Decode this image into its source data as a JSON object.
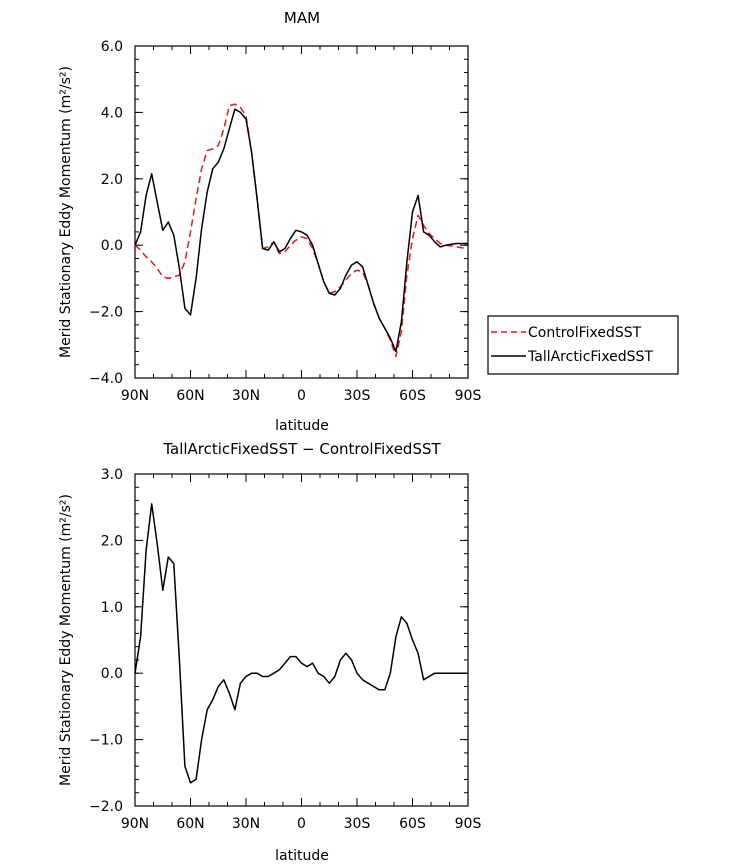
{
  "chart_data": [
    {
      "type": "line",
      "title": "MAM",
      "xlabel": "latitude",
      "ylabel": "Merid Stationary Eddy Momentum (m²/s²)",
      "xlim": [
        90,
        -90
      ],
      "ylim": [
        -4.0,
        6.0
      ],
      "xticks": [
        90,
        60,
        30,
        0,
        -30,
        -60,
        -90
      ],
      "xtick_labels": [
        "90N",
        "60N",
        "30N",
        "0",
        "30S",
        "60S",
        "90S"
      ],
      "yticks": [
        -4.0,
        -2.0,
        0.0,
        2.0,
        4.0,
        6.0
      ],
      "ytick_labels": [
        "−4.0",
        "−2.0",
        "0.0",
        "2.0",
        "4.0",
        "6.0"
      ],
      "grid": false,
      "legend": "right",
      "series": [
        {
          "name": "ControlFixedSST",
          "color": "#e41a1c",
          "style": "dashed",
          "x": [
            90,
            87,
            84,
            81,
            78,
            75,
            72,
            69,
            66,
            63,
            60,
            57,
            54,
            51,
            48,
            45,
            42,
            39,
            36,
            33,
            30,
            27,
            24,
            21,
            18,
            15,
            12,
            9,
            6,
            3,
            0,
            -3,
            -6,
            -9,
            -12,
            -15,
            -18,
            -21,
            -24,
            -27,
            -30,
            -33,
            -36,
            -39,
            -42,
            -45,
            -48,
            -51,
            -54,
            -57,
            -60,
            -63,
            -66,
            -69,
            -72,
            -75,
            -78,
            -81,
            -84,
            -87,
            -90
          ],
          "y": [
            0.0,
            -0.15,
            -0.35,
            -0.5,
            -0.7,
            -0.95,
            -1.0,
            -0.95,
            -0.9,
            -0.5,
            0.4,
            1.4,
            2.3,
            2.85,
            2.9,
            3.0,
            3.5,
            4.2,
            4.25,
            4.15,
            3.9,
            2.8,
            1.4,
            -0.1,
            -0.05,
            0.1,
            -0.25,
            -0.2,
            0.0,
            0.15,
            0.25,
            0.2,
            -0.1,
            -0.55,
            -1.1,
            -1.45,
            -1.4,
            -1.25,
            -1.05,
            -0.85,
            -0.75,
            -0.8,
            -1.2,
            -1.75,
            -2.2,
            -2.5,
            -2.85,
            -3.35,
            -2.6,
            -0.9,
            0.2,
            0.9,
            0.6,
            0.35,
            0.2,
            0.05,
            0.0,
            -0.02,
            -0.05,
            -0.08,
            -0.1
          ]
        },
        {
          "name": "TallArcticFixedSST",
          "color": "#000000",
          "style": "solid",
          "x": [
            90,
            87,
            84,
            81,
            78,
            75,
            72,
            69,
            66,
            63,
            60,
            57,
            54,
            51,
            48,
            45,
            42,
            39,
            36,
            33,
            30,
            27,
            24,
            21,
            18,
            15,
            12,
            9,
            6,
            3,
            0,
            -3,
            -6,
            -9,
            -12,
            -15,
            -18,
            -21,
            -24,
            -27,
            -30,
            -33,
            -36,
            -39,
            -42,
            -45,
            -48,
            -51,
            -54,
            -57,
            -60,
            -63,
            -66,
            -69,
            -72,
            -75,
            -78,
            -81,
            -84,
            -87,
            -90
          ],
          "y": [
            0.0,
            0.4,
            1.5,
            2.15,
            1.3,
            0.45,
            0.7,
            0.3,
            -0.7,
            -1.9,
            -2.1,
            -1.0,
            0.5,
            1.6,
            2.3,
            2.5,
            2.9,
            3.5,
            4.1,
            4.0,
            3.8,
            2.8,
            1.4,
            -0.1,
            -0.15,
            0.1,
            -0.2,
            -0.1,
            0.2,
            0.45,
            0.4,
            0.3,
            0.0,
            -0.55,
            -1.1,
            -1.45,
            -1.5,
            -1.3,
            -0.9,
            -0.6,
            -0.5,
            -0.65,
            -1.2,
            -1.75,
            -2.2,
            -2.5,
            -2.8,
            -3.2,
            -2.3,
            -0.5,
            1.0,
            1.5,
            0.4,
            0.3,
            0.1,
            -0.05,
            0.0,
            0.03,
            0.05,
            0.05,
            0.05
          ]
        }
      ]
    },
    {
      "type": "line",
      "title": "TallArcticFixedSST − ControlFixedSST",
      "xlabel": "latitude",
      "ylabel": "Merid Stationary Eddy Momentum (m²/s²)",
      "xlim": [
        90,
        -90
      ],
      "ylim": [
        -2.0,
        3.0
      ],
      "xticks": [
        90,
        60,
        30,
        0,
        -30,
        -60,
        -90
      ],
      "xtick_labels": [
        "90N",
        "60N",
        "30N",
        "0",
        "30S",
        "60S",
        "90S"
      ],
      "yticks": [
        -2.0,
        -1.0,
        0.0,
        1.0,
        2.0,
        3.0
      ],
      "ytick_labels": [
        "−2.0",
        "−1.0",
        "0.0",
        "1.0",
        "2.0",
        "3.0"
      ],
      "grid": false,
      "series": [
        {
          "color": "#000000",
          "style": "solid",
          "x": [
            90,
            87,
            84,
            81,
            78,
            75,
            72,
            69,
            66,
            63,
            60,
            57,
            54,
            51,
            48,
            45,
            42,
            39,
            36,
            33,
            30,
            27,
            24,
            21,
            18,
            15,
            12,
            9,
            6,
            3,
            0,
            -3,
            -6,
            -9,
            -12,
            -15,
            -18,
            -21,
            -24,
            -27,
            -30,
            -33,
            -36,
            -39,
            -42,
            -45,
            -48,
            -51,
            -54,
            -57,
            -60,
            -63,
            -66,
            -69,
            -72,
            -75,
            -78,
            -81,
            -84,
            -87,
            -90
          ],
          "y": [
            0.0,
            0.55,
            1.85,
            2.55,
            1.95,
            1.25,
            1.75,
            1.65,
            0.2,
            -1.4,
            -1.65,
            -1.6,
            -1.0,
            -0.55,
            -0.4,
            -0.2,
            -0.1,
            -0.3,
            -0.55,
            -0.15,
            -0.05,
            0.0,
            0.0,
            -0.05,
            -0.05,
            0.0,
            0.05,
            0.15,
            0.25,
            0.25,
            0.15,
            0.1,
            0.15,
            0.0,
            -0.05,
            -0.15,
            -0.05,
            0.2,
            0.3,
            0.2,
            0.0,
            -0.1,
            -0.15,
            -0.2,
            -0.25,
            -0.25,
            0.0,
            0.55,
            0.85,
            0.75,
            0.5,
            0.3,
            -0.1,
            -0.05,
            0.0,
            0.0,
            0.0,
            0.0,
            0.0,
            0.0,
            0.0
          ]
        }
      ]
    }
  ]
}
